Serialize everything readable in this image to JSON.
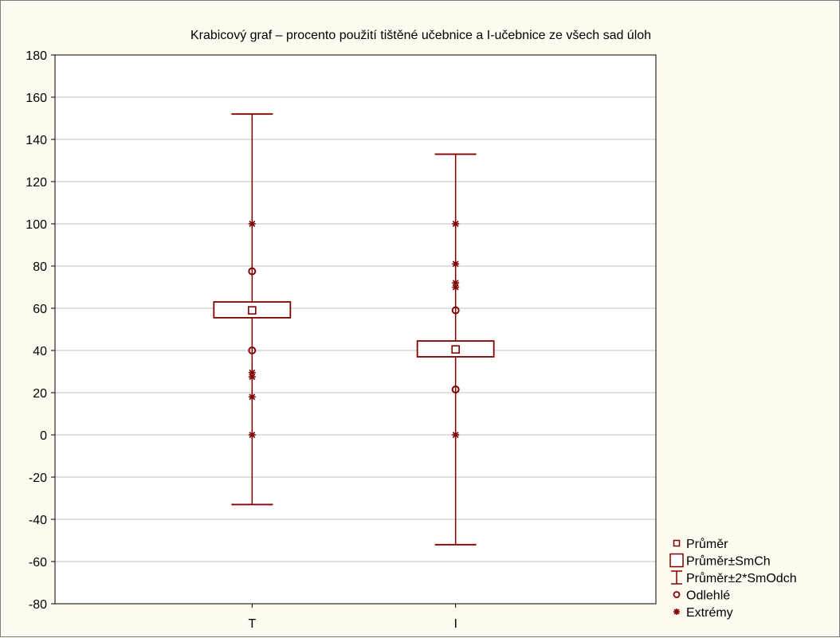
{
  "chart_data": {
    "type": "box",
    "title": "Krabicový graf – procento použití tištěné učebnice a I-učebnice ze všech sad úloh",
    "xlabel": "",
    "ylabel": "",
    "categories": [
      "T",
      "I"
    ],
    "ylim": [
      -80,
      180
    ],
    "yticks": [
      -80,
      -60,
      -40,
      -20,
      0,
      20,
      40,
      60,
      80,
      100,
      120,
      140,
      160,
      180
    ],
    "grid": true,
    "legend_position": "bottom-right, outside plot",
    "series": [
      {
        "category": "T",
        "mean": 59,
        "mean_minus_se": 55.5,
        "mean_plus_se": 63,
        "mean_minus_2sd": -33,
        "mean_plus_2sd": 152,
        "outliers": [
          77.5,
          40
        ],
        "extremes": [
          100,
          29.5,
          27.5,
          18,
          0
        ]
      },
      {
        "category": "I",
        "mean": 40.5,
        "mean_minus_se": 37,
        "mean_plus_se": 44.5,
        "mean_minus_2sd": -52,
        "mean_plus_2sd": 133,
        "outliers": [
          59,
          21.5
        ],
        "extremes": [
          100,
          81,
          72,
          70,
          0
        ]
      }
    ],
    "legend": [
      {
        "symbol": "small-square",
        "label": "Průměr"
      },
      {
        "symbol": "box",
        "label": "Průměr±SmCh"
      },
      {
        "symbol": "whisker",
        "label": "Průměr±2*SmOdch"
      },
      {
        "symbol": "circle",
        "label": "Odlehlé"
      },
      {
        "symbol": "asterisk",
        "label": "Extrémy"
      }
    ],
    "colors": {
      "series": "#800000",
      "grid": "#c0c0c0",
      "axis": "#000000",
      "background": "#fffbf0"
    }
  }
}
